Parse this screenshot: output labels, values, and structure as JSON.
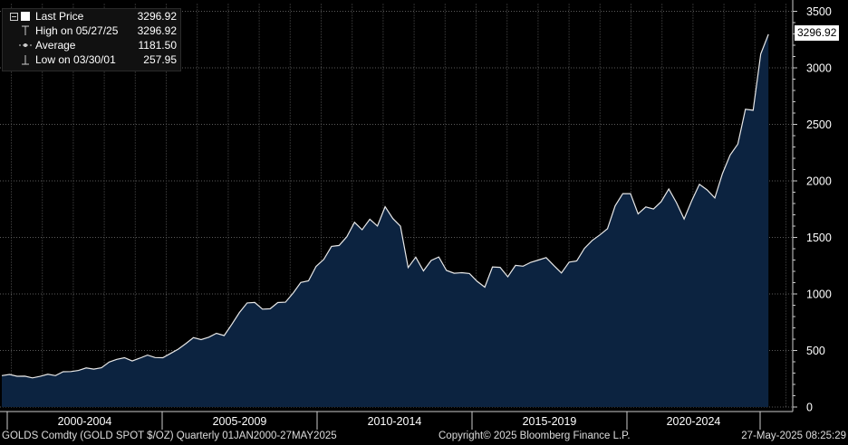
{
  "legend": {
    "items": [
      {
        "label": "Last Price",
        "value": "3296.92"
      },
      {
        "label": "High on 05/27/25",
        "value": "3296.92"
      },
      {
        "label": "Average",
        "value": "1181.50"
      },
      {
        "label": "Low on 03/30/01",
        "value": "257.95"
      }
    ]
  },
  "price_tag": "3296.92",
  "footer": {
    "ticker": "GOLDS Comdty (GOLD SPOT $/OZ)  Quarterly 01JAN2000-27MAY2025",
    "copyright": "Copyright© 2025 Bloomberg Finance L.P.",
    "timestamp": "27-May-2025 08:25:29"
  },
  "colors": {
    "area_fill": "#0c2340",
    "line": "#e8e8e8",
    "grid": "#5a5a5a",
    "axis": "#cccccc"
  },
  "chart_data": {
    "type": "area",
    "title": "",
    "xlabel": "",
    "ylabel": "",
    "ylim": [
      0,
      3500
    ],
    "yticks": [
      0,
      500,
      1000,
      1500,
      2000,
      2500,
      3000,
      3500
    ],
    "ytick_labels": [
      "0",
      "500",
      "1000",
      "1500",
      "2000",
      "2500",
      "3000",
      "3500"
    ],
    "x_period_labels": [
      "2000-2004",
      "2005-2009",
      "2010-2014",
      "2015-2019",
      "2020-2024"
    ],
    "grid": true,
    "series": [
      {
        "values": [
          278,
          288,
          272,
          273,
          258,
          271,
          290,
          278,
          312,
          314,
          323,
          346,
          335,
          347,
          398,
          422,
          436,
          407,
          432,
          459,
          438,
          436,
          474,
          511,
          561,
          614,
          596,
          618,
          652,
          632,
          731,
          836,
          921,
          925,
          866,
          869,
          924,
          927,
          1008,
          1102,
          1116,
          1244,
          1306,
          1421,
          1429,
          1506,
          1634,
          1568,
          1661,
          1601,
          1771,
          1667,
          1599,
          1234,
          1326,
          1204,
          1296,
          1327,
          1208,
          1183,
          1188,
          1181,
          1112,
          1060,
          1239,
          1235,
          1152,
          1253,
          1246,
          1280,
          1300,
          1322,
          1251,
          1186,
          1282,
          1292,
          1403,
          1473,
          1522,
          1577,
          1780,
          1887,
          1887,
          1708,
          1770,
          1751,
          1815,
          1929,
          1807,
          1663,
          1826,
          1970,
          1920,
          1849,
          2064,
          2229,
          2326,
          2634,
          2625,
          3123,
          3297
        ]
      }
    ]
  }
}
